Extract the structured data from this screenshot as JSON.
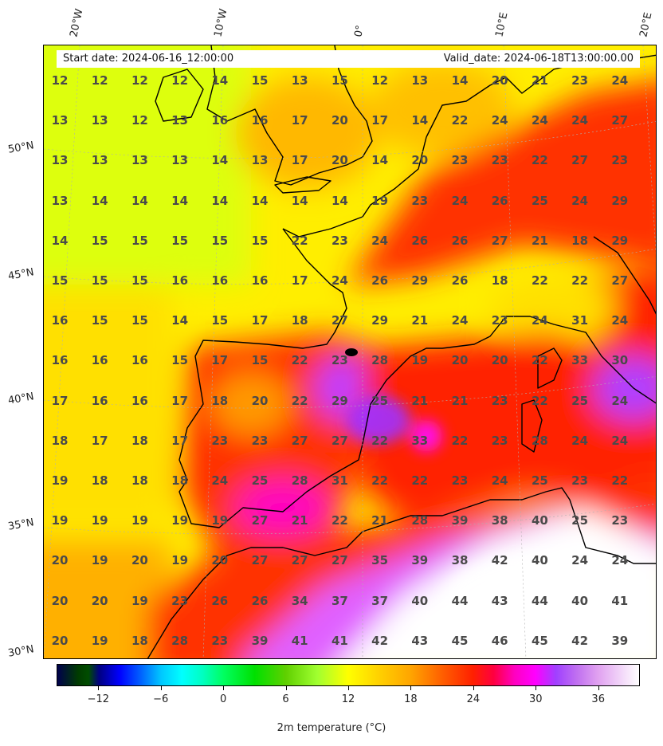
{
  "header": {
    "start_date": "Start date: 2024-06-16_12:00:00",
    "valid_date": "Valid_date: 2024-06-18T13:00:00.00"
  },
  "grid_labels": {
    "lon": [
      "20°W",
      "10°W",
      "0°",
      "10°E",
      "20°E"
    ],
    "lat": [
      "50°N",
      "45°N",
      "40°N",
      "35°N",
      "30°N"
    ]
  },
  "temperatures": [
    [
      "12",
      "12",
      "12",
      "12",
      "14",
      "15",
      "13",
      "15",
      "12",
      "13",
      "14",
      "20",
      "21",
      "23",
      "24"
    ],
    [
      "13",
      "13",
      "12",
      "13",
      "16",
      "16",
      "17",
      "20",
      "17",
      "14",
      "22",
      "24",
      "24",
      "24",
      "27"
    ],
    [
      "13",
      "13",
      "13",
      "13",
      "14",
      "13",
      "17",
      "20",
      "14",
      "20",
      "23",
      "23",
      "22",
      "27",
      "23"
    ],
    [
      "13",
      "14",
      "14",
      "14",
      "14",
      "14",
      "14",
      "14",
      "19",
      "23",
      "24",
      "26",
      "25",
      "24",
      "29"
    ],
    [
      "14",
      "15",
      "15",
      "15",
      "15",
      "15",
      "22",
      "23",
      "24",
      "26",
      "26",
      "27",
      "21",
      "18",
      "29"
    ],
    [
      "15",
      "15",
      "15",
      "16",
      "16",
      "16",
      "17",
      "24",
      "26",
      "29",
      "26",
      "18",
      "22",
      "22",
      "27"
    ],
    [
      "16",
      "15",
      "15",
      "14",
      "15",
      "17",
      "18",
      "27",
      "29",
      "21",
      "24",
      "23",
      "24",
      "31",
      "24"
    ],
    [
      "16",
      "16",
      "16",
      "15",
      "17",
      "15",
      "22",
      "23",
      "28",
      "19",
      "20",
      "20",
      "22",
      "33",
      "30"
    ],
    [
      "17",
      "16",
      "16",
      "17",
      "18",
      "20",
      "22",
      "29",
      "25",
      "21",
      "21",
      "23",
      "22",
      "25",
      "24"
    ],
    [
      "18",
      "17",
      "18",
      "17",
      "23",
      "23",
      "27",
      "27",
      "22",
      "33",
      "22",
      "23",
      "28",
      "24",
      "24"
    ],
    [
      "19",
      "18",
      "18",
      "18",
      "24",
      "25",
      "28",
      "31",
      "22",
      "22",
      "23",
      "24",
      "25",
      "23",
      "22"
    ],
    [
      "19",
      "19",
      "19",
      "19",
      "19",
      "27",
      "21",
      "22",
      "21",
      "28",
      "39",
      "38",
      "40",
      "25",
      "23"
    ],
    [
      "20",
      "19",
      "20",
      "19",
      "20",
      "27",
      "27",
      "27",
      "35",
      "39",
      "38",
      "42",
      "40",
      "24",
      "24"
    ],
    [
      "20",
      "20",
      "19",
      "23",
      "26",
      "26",
      "34",
      "37",
      "37",
      "40",
      "44",
      "43",
      "44",
      "40",
      "41"
    ],
    [
      "20",
      "19",
      "18",
      "28",
      "23",
      "39",
      "41",
      "41",
      "42",
      "43",
      "45",
      "46",
      "45",
      "42",
      "39"
    ]
  ],
  "colorbar": {
    "title": "2m temperature ($^\\circ$C)",
    "title_display": "2m temperature (°C)",
    "min": -16,
    "max": 40,
    "ticks": [
      "−12",
      "−6",
      "0",
      "6",
      "12",
      "18",
      "24",
      "30",
      "36"
    ],
    "tick_values": [
      -12,
      -6,
      0,
      6,
      12,
      18,
      24,
      30,
      36
    ]
  },
  "colors": {
    "land_border": "#000000",
    "cold": "#00007f",
    "cyan": "#00ffff",
    "green": "#00e000",
    "yellow": "#ffff00",
    "orange": "#ffa500",
    "red": "#ff2000",
    "magenta": "#ff00ff",
    "violet": "#a040ff",
    "hot": "#ffffff",
    "value_text": "#4a4a4a"
  }
}
